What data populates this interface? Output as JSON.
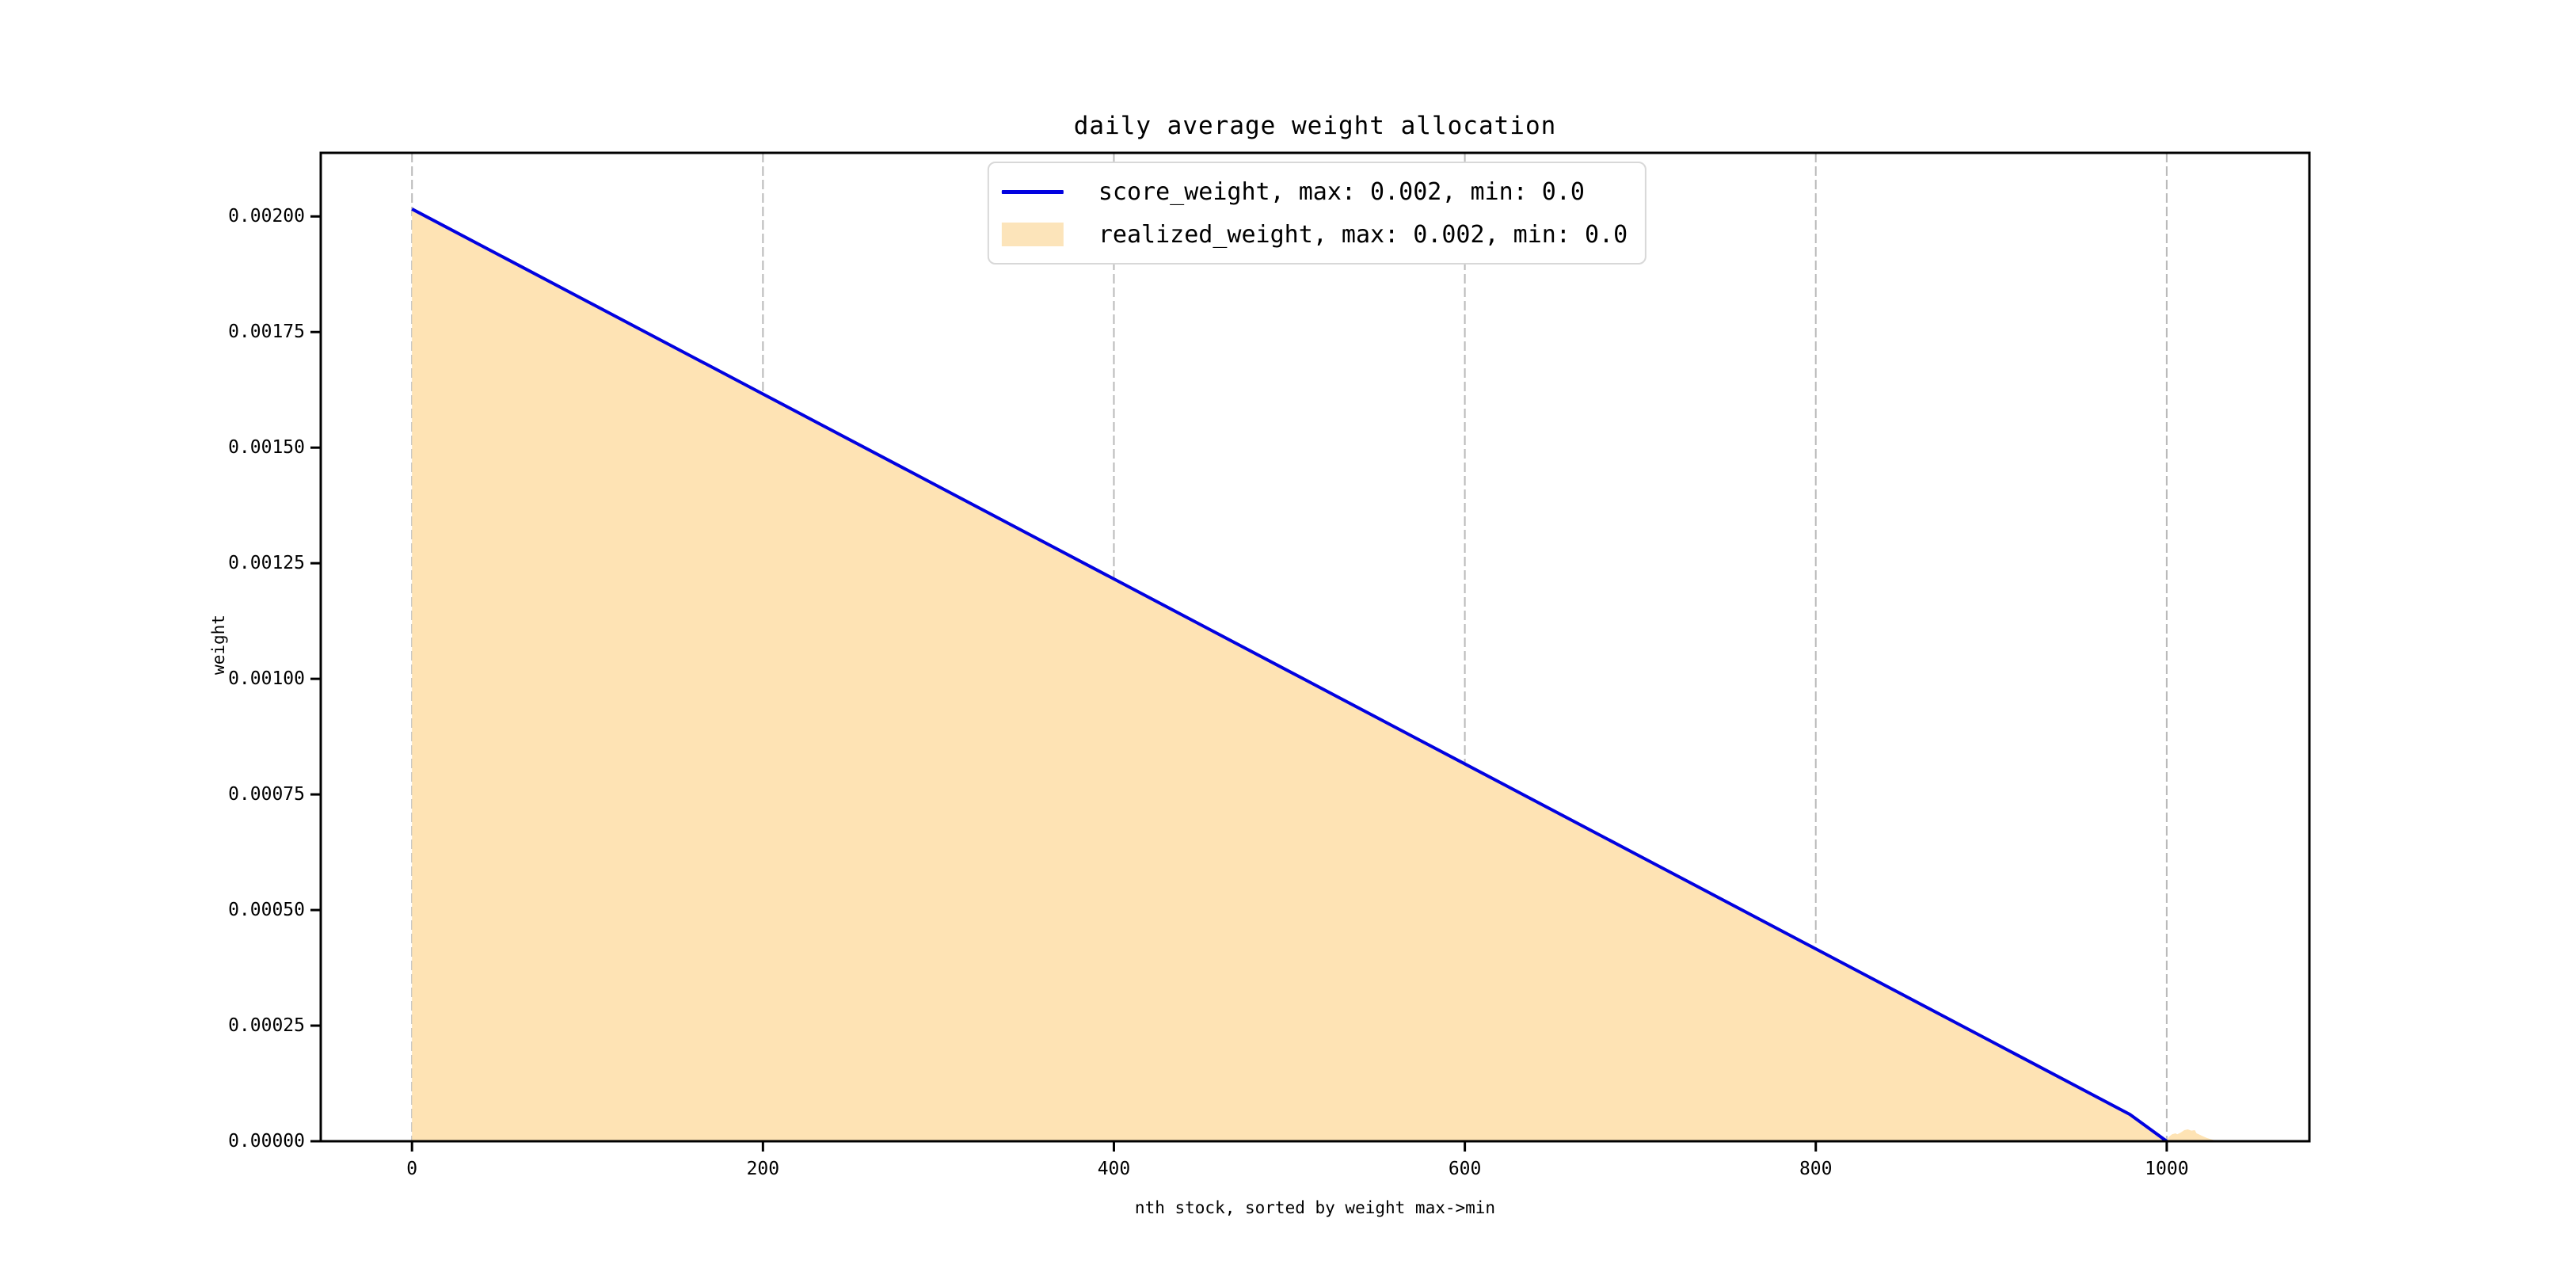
{
  "chart_data": {
    "type": "area",
    "title": "daily average weight allocation",
    "xlabel": "nth stock, sorted by weight max->min",
    "ylabel": "weight",
    "xlim": [
      -52,
      1081.3
    ],
    "ylim": [
      0,
      0.0021375
    ],
    "x_ticks": {
      "values": [
        0,
        200,
        400,
        600,
        800,
        1000
      ],
      "labels": [
        "0",
        "200",
        "400",
        "600",
        "800",
        "1000"
      ]
    },
    "y_ticks": {
      "values": [
        0,
        0.00025,
        0.0005,
        0.00075,
        0.001,
        0.00125,
        0.0015,
        0.00175,
        0.002
      ],
      "labels": [
        "0.00000",
        "0.00025",
        "0.00050",
        "0.00075",
        "0.00100",
        "0.00125",
        "0.00150",
        "0.00175",
        "0.00200"
      ]
    },
    "grid": {
      "vertical": true,
      "horizontal": false,
      "style": "dashed",
      "color": "#b9b9b9"
    },
    "axes_color": "#000000",
    "legend": {
      "position": "upper center",
      "border_color": "#d8d8d8",
      "entries": [
        {
          "label": "score_weight, max: 0.002, min: 0.0",
          "swatch": "line",
          "color": "#0202e0"
        },
        {
          "label": "realized_weight, max: 0.002, min: 0.0",
          "swatch": "area",
          "color": "#fce4ba"
        }
      ]
    },
    "series": [
      {
        "name": "score_weight, max: 0.002, min: 0.0",
        "type": "line",
        "color": "#0202e0",
        "x": [
          0,
          100,
          200,
          300,
          400,
          500,
          600,
          700,
          800,
          900,
          950,
          979,
          1000
        ],
        "y": [
          0.002016,
          0.001816,
          0.001616,
          0.001416,
          0.001216,
          0.001016,
          0.000816,
          0.000616,
          0.000416,
          0.000216,
          0.000116,
          5.8e-05,
          0.0
        ]
      },
      {
        "name": "realized_weight, max: 0.002, min: 0.0",
        "type": "area",
        "color": "#fee3b4",
        "x": [
          0,
          100,
          200,
          300,
          400,
          500,
          600,
          700,
          800,
          900,
          950,
          979,
          1000,
          1001,
          1003,
          1005,
          1006,
          1008,
          1010,
          1012,
          1014,
          1016,
          1017,
          1019,
          1021,
          1023,
          1026,
          1029
        ],
        "y": [
          0.002016,
          0.001816,
          0.001616,
          0.001416,
          0.001216,
          0.001016,
          0.000816,
          0.000616,
          0.000416,
          0.000216,
          0.000116,
          5.8e-05,
          0.0,
          9e-06,
          1.5e-05,
          1.71e-05,
          1.5e-05,
          1.88e-05,
          2.4e-05,
          2.57e-05,
          2.3e-05,
          2.4e-05,
          1.71e-05,
          1.37e-05,
          1e-05,
          6.8e-06,
          3.4e-06,
          0.0
        ]
      }
    ]
  }
}
